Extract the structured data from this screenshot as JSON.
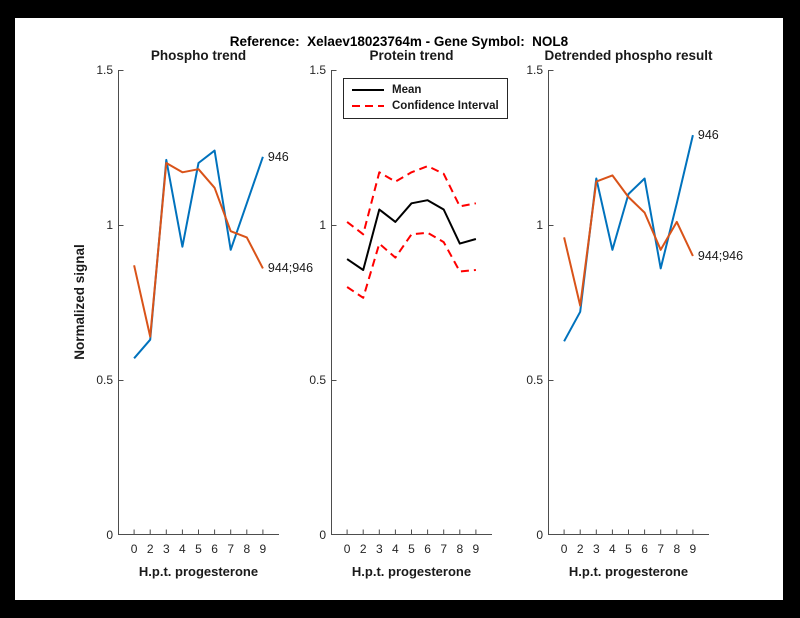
{
  "figure_title": "Reference:  Xelaev18023764m - Gene Symbol:  NOL8",
  "colors": {
    "blue": "#0072BD",
    "orange": "#D95319",
    "red": "#FF0000",
    "black": "#000000",
    "axis": "#4D4D4D",
    "text": "#262626"
  },
  "chart_data": [
    {
      "type": "line",
      "title": "Phospho trend",
      "xlabel": "H.p.t. progesterone",
      "ylabel": "Normalized signal",
      "x_categories": [
        "0",
        "2",
        "3",
        "4",
        "5",
        "6",
        "7",
        "8",
        "9"
      ],
      "yticks": [
        0,
        0.5,
        1,
        1.5
      ],
      "ylim": [
        0,
        1.5
      ],
      "grid": false,
      "series": [
        {
          "name": "946",
          "color": "blue",
          "style": "solid",
          "end_label": "946",
          "values": [
            0.57,
            0.63,
            1.21,
            0.93,
            1.2,
            1.24,
            0.92,
            1.07,
            1.22
          ]
        },
        {
          "name": "944;946",
          "color": "orange",
          "style": "solid",
          "end_label": "944;946",
          "values": [
            0.87,
            0.64,
            1.2,
            1.17,
            1.18,
            1.12,
            0.98,
            0.96,
            0.86
          ]
        }
      ]
    },
    {
      "type": "line",
      "title": "Protein trend",
      "xlabel": "H.p.t. progesterone",
      "x_categories": [
        "0",
        "2",
        "3",
        "4",
        "5",
        "6",
        "7",
        "8",
        "9"
      ],
      "yticks": [
        0,
        0.5,
        1,
        1.5
      ],
      "ylim": [
        0,
        1.5
      ],
      "grid": false,
      "legend": {
        "position": "top-left",
        "items": [
          {
            "label": "Mean",
            "color": "black",
            "style": "solid"
          },
          {
            "label": "Confidence Interval",
            "color": "red",
            "style": "dashed"
          }
        ]
      },
      "series": [
        {
          "name": "Confidence Interval upper",
          "color": "red",
          "style": "dashed",
          "values": [
            1.01,
            0.97,
            1.17,
            1.14,
            1.17,
            1.19,
            1.165,
            1.06,
            1.07
          ]
        },
        {
          "name": "Confidence Interval lower",
          "color": "red",
          "style": "dashed",
          "values": [
            0.8,
            0.765,
            0.94,
            0.895,
            0.97,
            0.975,
            0.945,
            0.85,
            0.855
          ]
        },
        {
          "name": "Mean",
          "color": "black",
          "style": "solid",
          "values": [
            0.89,
            0.855,
            1.05,
            1.01,
            1.07,
            1.08,
            1.05,
            0.94,
            0.955
          ]
        }
      ]
    },
    {
      "type": "line",
      "title": "Detrended phospho result",
      "xlabel": "H.p.t. progesterone",
      "x_categories": [
        "0",
        "2",
        "3",
        "4",
        "5",
        "6",
        "7",
        "8",
        "9"
      ],
      "yticks": [
        0,
        0.5,
        1,
        1.5
      ],
      "ylim": [
        0,
        1.5
      ],
      "grid": false,
      "series": [
        {
          "name": "946",
          "color": "blue",
          "style": "solid",
          "end_label": "946",
          "values": [
            0.625,
            0.72,
            1.15,
            0.92,
            1.1,
            1.15,
            0.86,
            1.07,
            1.29
          ]
        },
        {
          "name": "944;946",
          "color": "orange",
          "style": "solid",
          "end_label": "944;946",
          "values": [
            0.96,
            0.74,
            1.14,
            1.16,
            1.09,
            1.04,
            0.92,
            1.01,
            0.9
          ]
        }
      ]
    }
  ]
}
